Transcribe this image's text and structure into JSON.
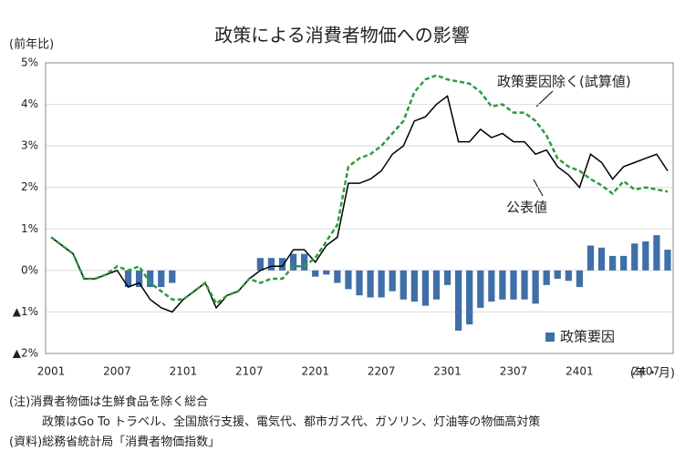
{
  "chart_data": {
    "type": "combo",
    "title": "政策による消費者物価への影響",
    "y_axis_label": "(前年比)",
    "x_axis_label": "(年・月)",
    "categories": [
      "2001",
      null,
      null,
      null,
      null,
      null,
      "2007",
      null,
      null,
      null,
      null,
      null,
      "2101",
      null,
      null,
      null,
      null,
      null,
      "2107",
      null,
      null,
      null,
      null,
      null,
      "2201",
      null,
      null,
      null,
      null,
      null,
      "2207",
      null,
      null,
      null,
      null,
      null,
      "2301",
      null,
      null,
      null,
      null,
      null,
      "2307",
      null,
      null,
      null,
      null,
      null,
      "2401",
      null,
      null,
      null,
      null,
      null,
      "2407",
      null,
      null
    ],
    "ylim": [
      -2,
      5
    ],
    "yticks": [
      {
        "value": -2,
        "label": "▲2%"
      },
      {
        "value": -1,
        "label": "▲1%"
      },
      {
        "value": 0,
        "label": "0%"
      },
      {
        "value": 1,
        "label": "1%"
      },
      {
        "value": 2,
        "label": "2%"
      },
      {
        "value": 3,
        "label": "3%"
      },
      {
        "value": 4,
        "label": "4%"
      },
      {
        "value": 5,
        "label": "5%"
      }
    ],
    "grid": true,
    "series": [
      {
        "name": "政策要因",
        "type": "bar",
        "color": "#3f6fa8",
        "values": [
          null,
          null,
          null,
          null,
          null,
          null,
          null,
          -0.4,
          -0.4,
          -0.4,
          -0.4,
          -0.3,
          null,
          null,
          null,
          null,
          null,
          null,
          null,
          0.3,
          0.3,
          0.3,
          0.4,
          0.4,
          -0.15,
          -0.1,
          -0.3,
          -0.45,
          -0.6,
          -0.65,
          -0.65,
          -0.5,
          -0.7,
          -0.75,
          -0.85,
          -0.7,
          -0.35,
          -1.45,
          -1.3,
          -0.9,
          -0.75,
          -0.7,
          -0.7,
          -0.7,
          -0.8,
          -0.35,
          -0.2,
          -0.25,
          -0.4,
          0.6,
          0.55,
          0.35,
          0.35,
          0.65,
          0.7,
          0.85,
          0.5
        ]
      },
      {
        "name": "公表値",
        "type": "line",
        "color": "#000000",
        "values": [
          0.8,
          0.6,
          0.4,
          -0.2,
          -0.2,
          -0.1,
          0.0,
          -0.4,
          -0.3,
          -0.7,
          -0.9,
          -1.0,
          -0.7,
          -0.5,
          -0.3,
          -0.9,
          -0.6,
          -0.5,
          -0.2,
          0.0,
          0.1,
          0.1,
          0.5,
          0.5,
          0.2,
          0.6,
          0.8,
          2.1,
          2.1,
          2.2,
          2.4,
          2.8,
          3.0,
          3.6,
          3.7,
          4.0,
          4.2,
          3.1,
          3.1,
          3.4,
          3.2,
          3.3,
          3.1,
          3.1,
          2.8,
          2.9,
          2.5,
          2.3,
          2.0,
          2.8,
          2.6,
          2.2,
          2.5,
          2.6,
          2.7,
          2.8,
          2.4
        ]
      },
      {
        "name": "政策要因除く(試算値)",
        "type": "dashed-line",
        "color": "#2e9b3e",
        "values": [
          0.8,
          0.6,
          0.4,
          -0.2,
          -0.2,
          -0.1,
          0.1,
          0.0,
          0.1,
          -0.3,
          -0.5,
          -0.7,
          -0.7,
          -0.5,
          -0.3,
          -0.8,
          -0.6,
          -0.5,
          -0.2,
          -0.3,
          -0.2,
          -0.2,
          0.1,
          0.1,
          0.3,
          0.7,
          1.1,
          2.5,
          2.7,
          2.8,
          3.0,
          3.3,
          3.6,
          4.3,
          4.6,
          4.7,
          4.6,
          4.55,
          4.5,
          4.3,
          3.95,
          4.0,
          3.8,
          3.8,
          3.6,
          3.25,
          2.7,
          2.5,
          2.4,
          2.2,
          2.05,
          1.85,
          2.15,
          1.95,
          2.0,
          1.95,
          1.9
        ]
      }
    ],
    "notes": [
      "(注)消費者物価は生鮮食品を除く総合",
      "政策はGo To トラベル、全国旅行支援、電気代、都市ガス代、ガソリン、灯油等の物価高対策",
      "(資料)総務省統計局「消費者物価指数」"
    ]
  }
}
